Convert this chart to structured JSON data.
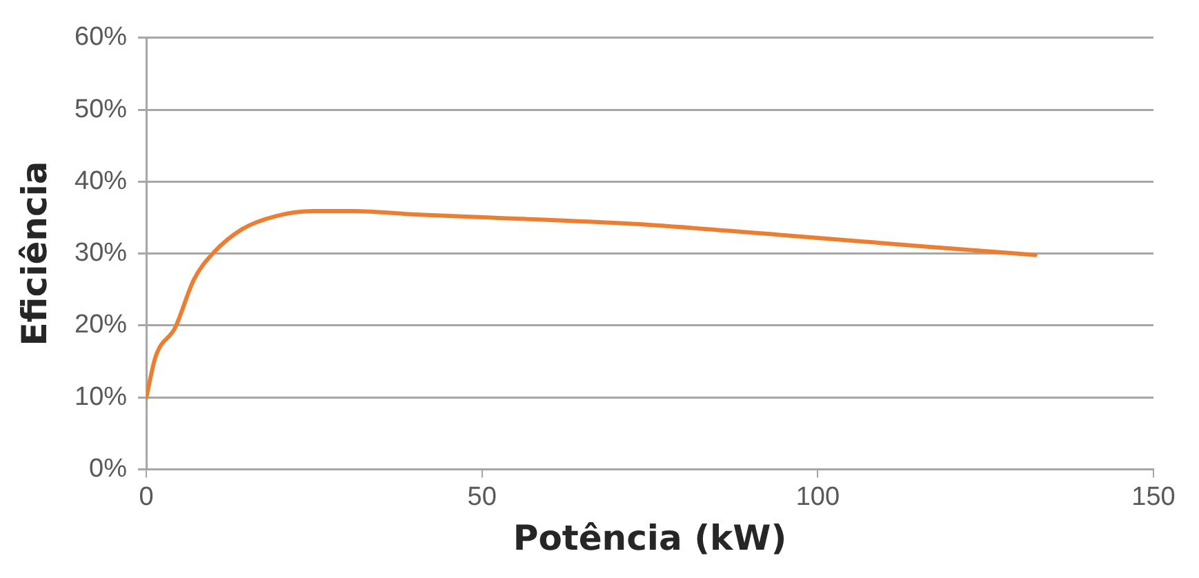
{
  "chart_data": {
    "type": "line",
    "xlabel": "Potência (kW)",
    "ylabel": "Eficiência",
    "series": [
      {
        "color": "#ed7d31",
        "x": [
          0,
          1.4,
          4.3,
          7.1,
          10,
          14.3,
          19.3,
          25,
          30.7,
          40.7,
          51.4,
          72.9,
          94.3,
          115.7,
          132.4
        ],
        "values": [
          10,
          15.7,
          19.7,
          26.4,
          30.1,
          33.4,
          35.2,
          35.9,
          35.9,
          35.4,
          35.0,
          34.1,
          32.6,
          31.0,
          29.8
        ]
      }
    ],
    "xlim": [
      0,
      150
    ],
    "xticks": [
      0,
      50,
      100,
      150
    ],
    "ylim": [
      0,
      60
    ],
    "yticks": [
      {
        "value": 0,
        "label": "0%"
      },
      {
        "value": 10,
        "label": "10%"
      },
      {
        "value": 20,
        "label": "20%"
      },
      {
        "value": 30,
        "label": "30%"
      },
      {
        "value": 40,
        "label": "40%"
      },
      {
        "value": 50,
        "label": "50%"
      },
      {
        "value": 60,
        "label": "60%"
      }
    ],
    "grid": "y",
    "legend": false,
    "marker": "none",
    "line_style": "solid"
  }
}
